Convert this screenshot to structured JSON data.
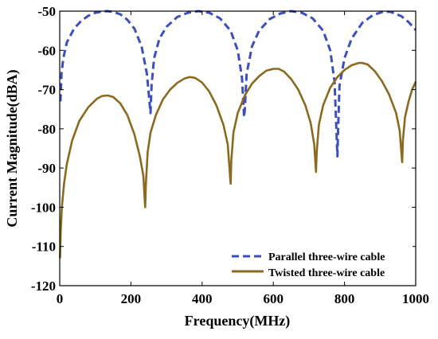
{
  "chart_data": {
    "type": "line",
    "xlabel": "Frequency(MHz)",
    "ylabel": "Current Magnitude(dBA)",
    "xlim": [
      0,
      1000
    ],
    "ylim": [
      -120,
      -50
    ],
    "xticks": [
      0,
      200,
      400,
      600,
      800,
      1000
    ],
    "yticks": [
      -50,
      -60,
      -70,
      -80,
      -90,
      -100,
      -110,
      -120
    ],
    "xtick_labels": [
      "0",
      "200",
      "400",
      "600",
      "800",
      "1000"
    ],
    "ytick_labels": [
      "-50",
      "-60",
      "-70",
      "-80",
      "-90",
      "-100",
      "-110",
      "-120"
    ],
    "grid": false,
    "legend_position": "bottom-right",
    "series": [
      {
        "name": "Parallel three-wire cable",
        "color": "#3b4fbf",
        "style": "dashed",
        "points": [
          [
            2,
            -73
          ],
          [
            5,
            -66
          ],
          [
            10,
            -62
          ],
          [
            20,
            -58
          ],
          [
            40,
            -54.5
          ],
          [
            60,
            -52.5
          ],
          [
            80,
            -51.2
          ],
          [
            100,
            -50.4
          ],
          [
            120,
            -50.1
          ],
          [
            133,
            -50
          ],
          [
            150,
            -50.2
          ],
          [
            170,
            -50.8
          ],
          [
            190,
            -52.2
          ],
          [
            210,
            -54.5
          ],
          [
            230,
            -59
          ],
          [
            245,
            -66
          ],
          [
            255,
            -76
          ],
          [
            258,
            -69
          ],
          [
            265,
            -62
          ],
          [
            280,
            -57
          ],
          [
            300,
            -54
          ],
          [
            330,
            -51.5
          ],
          [
            360,
            -50.4
          ],
          [
            390,
            -50
          ],
          [
            420,
            -50.4
          ],
          [
            450,
            -51.8
          ],
          [
            480,
            -55
          ],
          [
            500,
            -60
          ],
          [
            512,
            -67
          ],
          [
            518,
            -77
          ],
          [
            520,
            -75
          ],
          [
            525,
            -66
          ],
          [
            540,
            -59
          ],
          [
            560,
            -55
          ],
          [
            590,
            -52
          ],
          [
            620,
            -50.6
          ],
          [
            650,
            -50
          ],
          [
            680,
            -50.4
          ],
          [
            710,
            -51.8
          ],
          [
            740,
            -55
          ],
          [
            760,
            -60
          ],
          [
            772,
            -68
          ],
          [
            780,
            -87
          ],
          [
            782,
            -80
          ],
          [
            786,
            -69
          ],
          [
            800,
            -62
          ],
          [
            820,
            -57
          ],
          [
            850,
            -53
          ],
          [
            880,
            -51
          ],
          [
            910,
            -50.1
          ],
          [
            930,
            -50.2
          ],
          [
            960,
            -51.3
          ],
          [
            980,
            -52.8
          ],
          [
            1000,
            -54.8
          ]
        ]
      },
      {
        "name": "Twisted three-wire cable",
        "color": "#8b6a1f",
        "style": "solid",
        "points": [
          [
            1,
            -113
          ],
          [
            3,
            -106
          ],
          [
            6,
            -100
          ],
          [
            12,
            -94
          ],
          [
            20,
            -89
          ],
          [
            35,
            -83
          ],
          [
            55,
            -78
          ],
          [
            80,
            -74.5
          ],
          [
            105,
            -72.3
          ],
          [
            120,
            -71.6
          ],
          [
            135,
            -71.5
          ],
          [
            150,
            -71.9
          ],
          [
            170,
            -73.5
          ],
          [
            190,
            -76.5
          ],
          [
            210,
            -81.5
          ],
          [
            225,
            -87
          ],
          [
            235,
            -92
          ],
          [
            240,
            -100
          ],
          [
            242,
            -94
          ],
          [
            247,
            -86
          ],
          [
            255,
            -81
          ],
          [
            270,
            -76.5
          ],
          [
            290,
            -72.5
          ],
          [
            310,
            -70
          ],
          [
            330,
            -68.3
          ],
          [
            350,
            -67.2
          ],
          [
            365,
            -66.8
          ],
          [
            380,
            -67
          ],
          [
            400,
            -68.2
          ],
          [
            420,
            -70.5
          ],
          [
            440,
            -74
          ],
          [
            460,
            -79
          ],
          [
            472,
            -84
          ],
          [
            480,
            -94
          ],
          [
            482,
            -88
          ],
          [
            488,
            -81
          ],
          [
            500,
            -76
          ],
          [
            520,
            -71.5
          ],
          [
            540,
            -68.5
          ],
          [
            560,
            -66.6
          ],
          [
            580,
            -65.2
          ],
          [
            600,
            -64.7
          ],
          [
            615,
            -64.7
          ],
          [
            630,
            -65.4
          ],
          [
            650,
            -67.3
          ],
          [
            670,
            -70
          ],
          [
            690,
            -74
          ],
          [
            705,
            -78.5
          ],
          [
            715,
            -84
          ],
          [
            720,
            -91
          ],
          [
            722,
            -86
          ],
          [
            728,
            -79
          ],
          [
            740,
            -74
          ],
          [
            760,
            -69.5
          ],
          [
            780,
            -66.8
          ],
          [
            800,
            -65
          ],
          [
            820,
            -63.8
          ],
          [
            840,
            -63.2
          ],
          [
            850,
            -63.2
          ],
          [
            865,
            -63.6
          ],
          [
            885,
            -65.3
          ],
          [
            905,
            -67.8
          ],
          [
            925,
            -71.2
          ],
          [
            945,
            -76
          ],
          [
            955,
            -80.5
          ],
          [
            962,
            -88.5
          ],
          [
            964,
            -83
          ],
          [
            970,
            -77
          ],
          [
            980,
            -73
          ],
          [
            990,
            -70
          ],
          [
            1000,
            -68
          ]
        ]
      }
    ]
  }
}
